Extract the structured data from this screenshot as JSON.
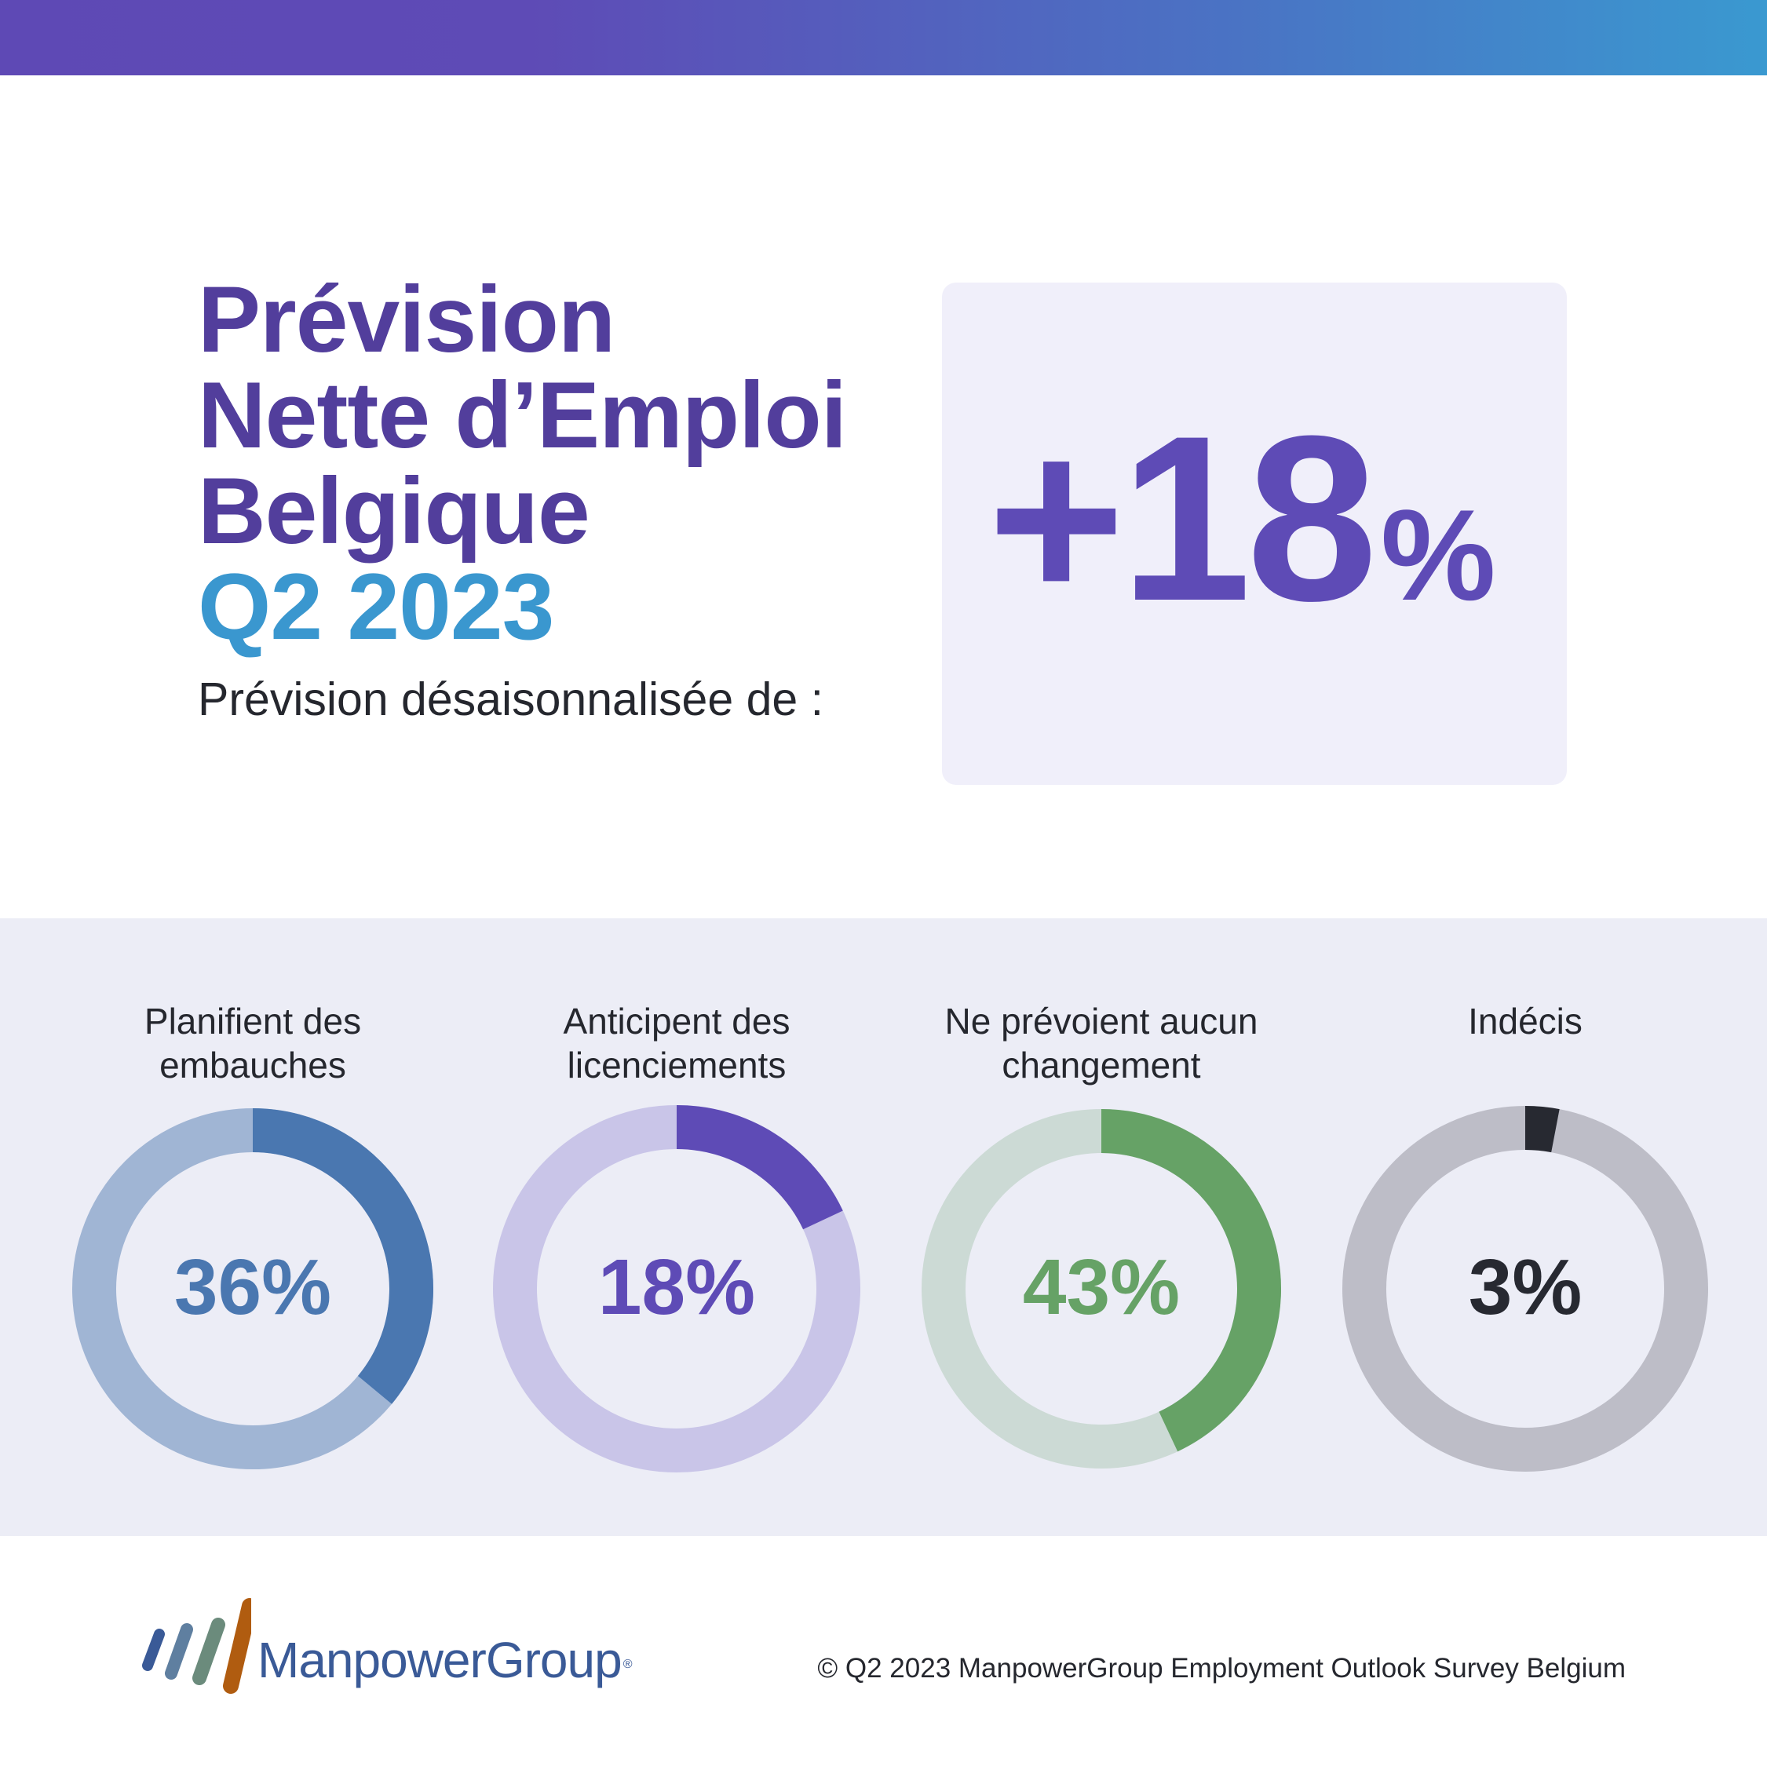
{
  "header": {
    "title_lines": [
      "Prévision",
      "Nette d’Emploi",
      "Belgique"
    ],
    "quarter": "Q2 2023",
    "subtitle": "Prévision désaisonnalisée de :"
  },
  "headline_value": {
    "number": "+18",
    "unit": "%"
  },
  "chart_data": {
    "type": "pie",
    "title": "",
    "slices": [
      {
        "label_lines": [
          "Planifient des",
          "embauches"
        ],
        "value": 36,
        "display": "36%",
        "color": "#4a77b0",
        "track_color": "#a0b5d4",
        "text_color": "#4a77b0"
      },
      {
        "label_lines": [
          "Anticipent des",
          "licenciements"
        ],
        "value": 18,
        "display": "18%",
        "color": "#5e4bb6",
        "track_color": "#c9c5e8",
        "text_color": "#5e4bb6"
      },
      {
        "label_lines": [
          "Ne prévoient aucun",
          "changement"
        ],
        "value": 43,
        "display": "43%",
        "color": "#66a266",
        "track_color": "#ccdad5",
        "text_color": "#66a266"
      },
      {
        "label_lines": [
          "Indécis"
        ],
        "value": 3,
        "display": "3%",
        "color": "#272931",
        "track_color": "#bdbdc7",
        "text_color": "#272931"
      }
    ]
  },
  "footer": {
    "brand": "ManpowerGroup",
    "registered_mark": "®",
    "copyright": "© Q2 2023 ManpowerGroup Employment Outlook Survey Belgium"
  }
}
